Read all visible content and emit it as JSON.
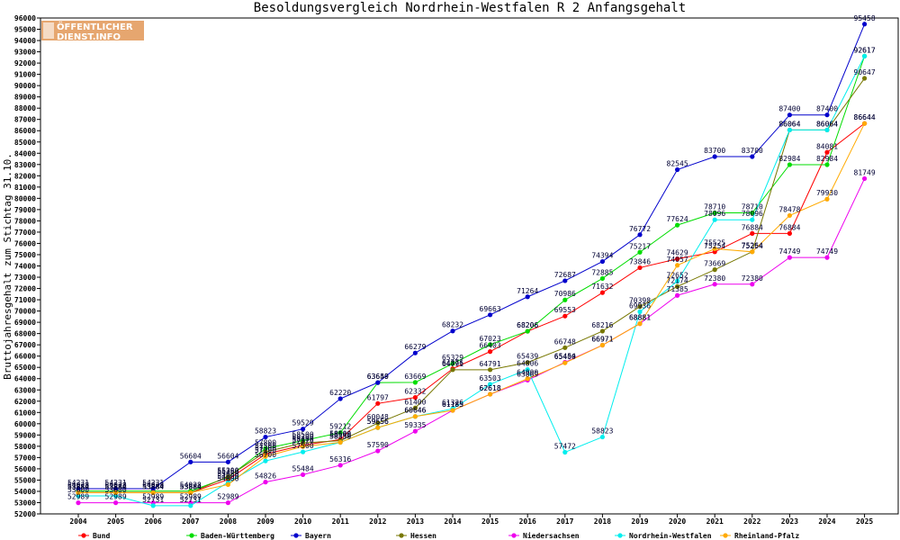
{
  "logo": {
    "line1": "ÖFFENTLICHER",
    "line2": "DIENST.INFO"
  },
  "chart_data": {
    "type": "line",
    "title": "Besoldungsvergleich Nordrhein-Westfalen R 2 Anfangsgehalt",
    "ylabel": "Bruttojahresgehalt zum Stichtag 31.10.",
    "xlabel": "",
    "x": [
      "2004",
      "2005",
      "2006",
      "2007",
      "2008",
      "2009",
      "2010",
      "2011",
      "2012",
      "2013",
      "2014",
      "2015",
      "2016",
      "2017",
      "2018",
      "2019",
      "2020",
      "2021",
      "2022",
      "2023",
      "2024",
      "2025"
    ],
    "ylim": [
      52000,
      96000
    ],
    "yticks": [
      52000,
      53000,
      54000,
      55000,
      56000,
      57000,
      58000,
      59000,
      60000,
      61000,
      62000,
      63000,
      64000,
      65000,
      66000,
      67000,
      68000,
      69000,
      70000,
      71000,
      72000,
      73000,
      74000,
      75000,
      76000,
      77000,
      78000,
      79000,
      80000,
      81000,
      82000,
      83000,
      84000,
      85000,
      86000,
      87000,
      88000,
      89000,
      90000,
      91000,
      92000,
      93000,
      94000,
      95000,
      96000
    ],
    "grid": false,
    "legend": "bottom",
    "series": [
      {
        "name": "Bund",
        "color": "#ff0000",
        "values": [
          53884,
          53884,
          53884,
          53884,
          55050,
          57300,
          58100,
          58600,
          61797,
          62332,
          64876,
          66403,
          68206,
          69553,
          71632,
          73846,
          74629,
          75254,
          76884,
          76884,
          84081,
          86644
        ]
      },
      {
        "name": "Baden-Württemberg",
        "color": "#00dd00",
        "values": [
          54028,
          54028,
          54028,
          54028,
          55250,
          57800,
          58500,
          59212,
          63649,
          63669,
          65329,
          67023,
          68206,
          70986,
          72885,
          75217,
          77624,
          78710,
          78710,
          82984,
          82984,
          92617
        ]
      },
      {
        "name": "Bayern",
        "color": "#0000cc",
        "values": [
          54231,
          54231,
          54231,
          56604,
          56604,
          58823,
          59529,
          62220,
          63650,
          66279,
          68232,
          69663,
          71264,
          72687,
          74394,
          76772,
          82545,
          83700,
          83700,
          87400,
          87400,
          95458
        ]
      },
      {
        "name": "Hessen",
        "color": "#777700",
        "values": [
          53884,
          53884,
          53884,
          53884,
          55300,
          57500,
          58300,
          58500,
          60048,
          61400,
          64791,
          64791,
          65439,
          66748,
          68216,
          70398,
          72174,
          73669,
          75264,
          86064,
          86064,
          90647
        ]
      },
      {
        "name": "Niedersachsen",
        "color": "#ee00ee",
        "values": [
          52989,
          52989,
          52989,
          52989,
          52989,
          54826,
          55484,
          56316,
          57590,
          59335,
          61185,
          62618,
          63869,
          65454,
          66971,
          68881,
          71385,
          72380,
          72380,
          74749,
          74749,
          81749
        ]
      },
      {
        "name": "Nordrhein-Westfalen",
        "color": "#00eeee",
        "values": [
          53600,
          53600,
          52731,
          52731,
          54800,
          56700,
          57500,
          58350,
          59656,
          60646,
          61326,
          63503,
          64806,
          57472,
          58823,
          69936,
          72652,
          78096,
          78096,
          86064,
          86064,
          92617
        ]
      },
      {
        "name": "Rheinland-Pfalz",
        "color": "#ffaa00",
        "values": [
          53884,
          53884,
          53884,
          53884,
          54600,
          57100,
          57976,
          58350,
          59656,
          60646,
          61185,
          62618,
          64000,
          65400,
          66971,
          68881,
          74057,
          75525,
          75254,
          78478,
          79930,
          86644
        ]
      }
    ]
  }
}
